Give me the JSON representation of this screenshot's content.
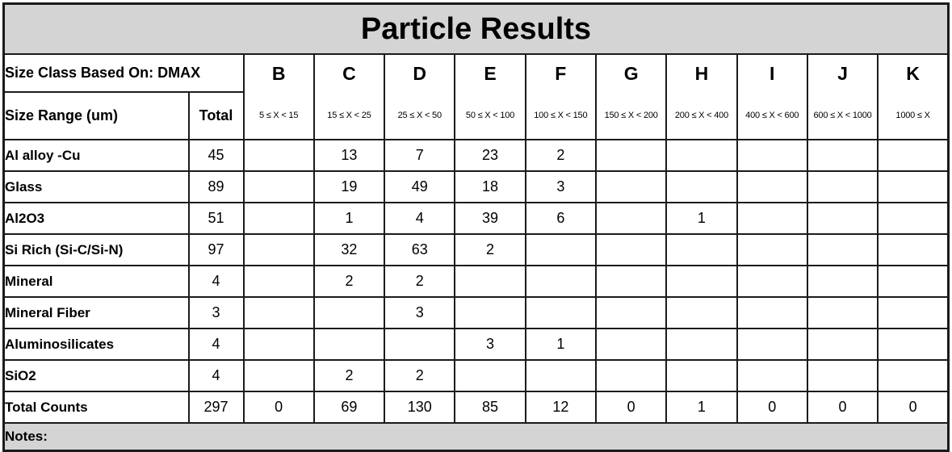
{
  "title": "Particle Results",
  "colors": {
    "header_bg": "#d4d4d4",
    "border": "#1b1b1b",
    "cell_bg": "#ffffff",
    "text": "#000000"
  },
  "header": {
    "size_class_label": "Size Class Based On: DMAX",
    "size_range_label": "Size Range (um)",
    "total_label": "Total",
    "classes": [
      {
        "letter": "B",
        "range": "5 ≤ X < 15"
      },
      {
        "letter": "C",
        "range": "15 ≤ X < 25"
      },
      {
        "letter": "D",
        "range": "25 ≤ X < 50"
      },
      {
        "letter": "E",
        "range": "50 ≤ X < 100"
      },
      {
        "letter": "F",
        "range": "100 ≤ X < 150"
      },
      {
        "letter": "G",
        "range": "150 ≤ X < 200"
      },
      {
        "letter": "H",
        "range": "200 ≤ X < 400"
      },
      {
        "letter": "I",
        "range": "400 ≤ X < 600"
      },
      {
        "letter": "J",
        "range": "600 ≤ X < 1000"
      },
      {
        "letter": "K",
        "range": "1000 ≤ X"
      }
    ]
  },
  "rows": [
    {
      "label": "Al alloy -Cu",
      "total": "45",
      "values": [
        "",
        "13",
        "7",
        "23",
        "2",
        "",
        "",
        "",
        "",
        ""
      ]
    },
    {
      "label": "Glass",
      "total": "89",
      "values": [
        "",
        "19",
        "49",
        "18",
        "3",
        "",
        "",
        "",
        "",
        ""
      ]
    },
    {
      "label": "Al2O3",
      "total": "51",
      "values": [
        "",
        "1",
        "4",
        "39",
        "6",
        "",
        "1",
        "",
        "",
        ""
      ]
    },
    {
      "label": "Si Rich (Si-C/Si-N)",
      "total": "97",
      "values": [
        "",
        "32",
        "63",
        "2",
        "",
        "",
        "",
        "",
        "",
        ""
      ]
    },
    {
      "label": "Mineral",
      "total": "4",
      "values": [
        "",
        "2",
        "2",
        "",
        "",
        "",
        "",
        "",
        "",
        ""
      ]
    },
    {
      "label": "Mineral Fiber",
      "total": "3",
      "values": [
        "",
        "",
        "3",
        "",
        "",
        "",
        "",
        "",
        "",
        ""
      ]
    },
    {
      "label": "Aluminosilicates",
      "total": "4",
      "values": [
        "",
        "",
        "",
        "3",
        "1",
        "",
        "",
        "",
        "",
        ""
      ]
    },
    {
      "label": "SiO2",
      "total": "4",
      "values": [
        "",
        "2",
        "2",
        "",
        "",
        "",
        "",
        "",
        "",
        ""
      ]
    },
    {
      "label": "Total Counts",
      "total": "297",
      "values": [
        "0",
        "69",
        "130",
        "85",
        "12",
        "0",
        "1",
        "0",
        "0",
        "0"
      ]
    }
  ],
  "notes_label": "Notes:"
}
